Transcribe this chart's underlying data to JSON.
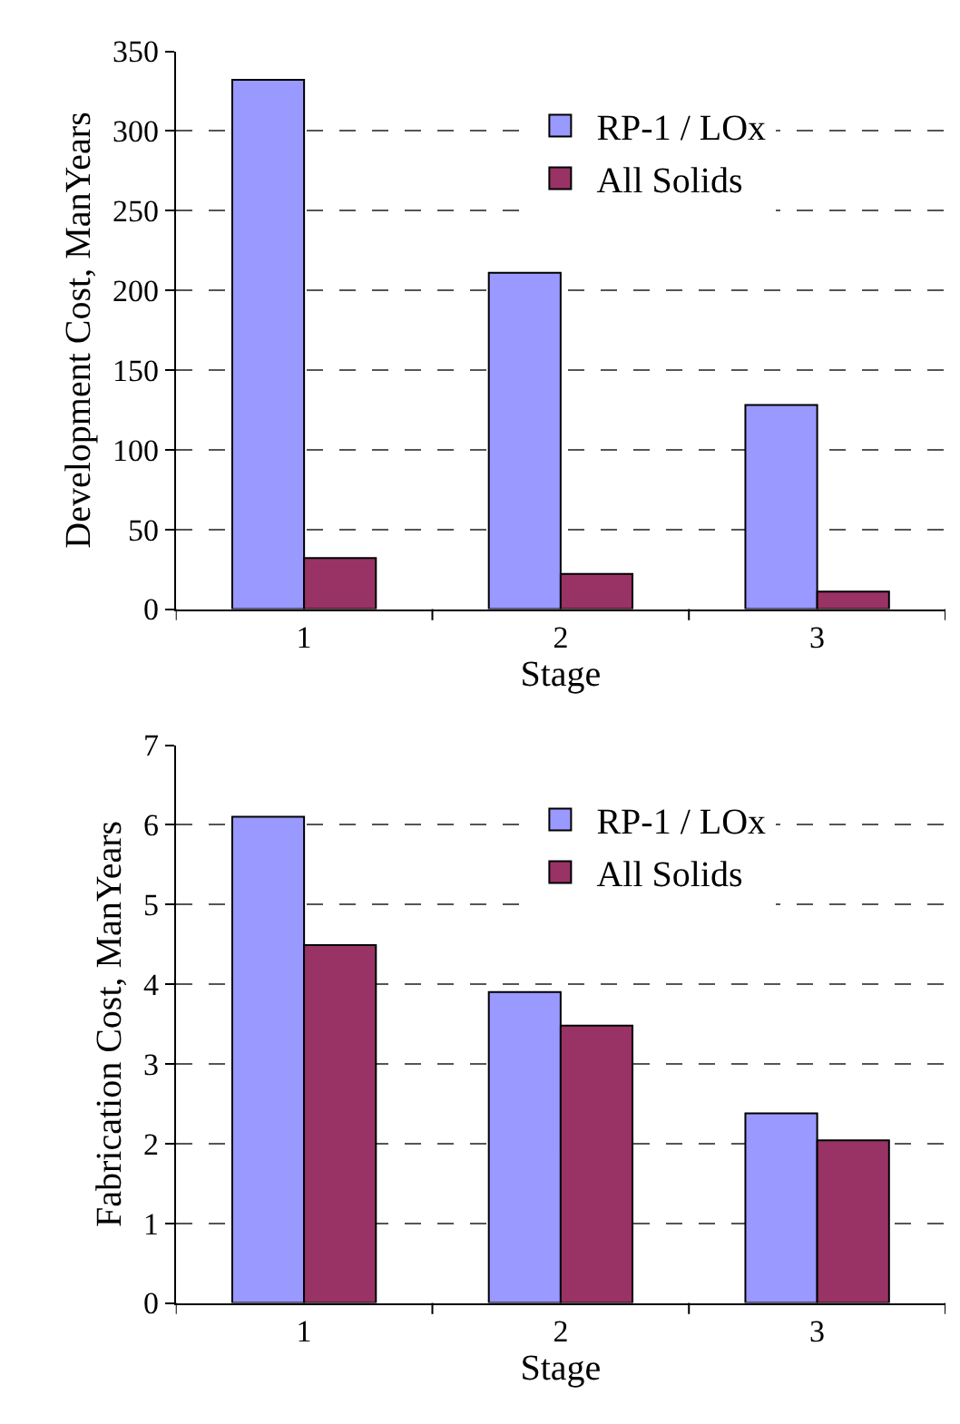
{
  "chart_data": [
    {
      "type": "bar",
      "categories": [
        "1",
        "2",
        "3"
      ],
      "xlabel": "Stage",
      "ylabel": "Development Cost, ManYears",
      "ylim": [
        0,
        350
      ],
      "yticks": [
        0,
        50,
        100,
        150,
        200,
        250,
        300,
        350
      ],
      "grid": "y",
      "legend": "top right",
      "series": [
        {
          "name": "RP-1 / LOx",
          "color": "#9999ff",
          "values": [
            332,
            211,
            128
          ]
        },
        {
          "name": "All Solids",
          "color": "#993366",
          "values": [
            32,
            22,
            11
          ]
        }
      ]
    },
    {
      "type": "bar",
      "categories": [
        "1",
        "2",
        "3"
      ],
      "xlabel": "Stage",
      "ylabel": "Fabrication Cost, ManYears",
      "ylim": [
        0,
        7
      ],
      "yticks": [
        0,
        1,
        2,
        3,
        4,
        5,
        6,
        7
      ],
      "grid": "y",
      "legend": "top right",
      "series": [
        {
          "name": "RP-1 / LOx",
          "color": "#9999ff",
          "values": [
            6.1,
            3.9,
            2.38
          ]
        },
        {
          "name": "All Solids",
          "color": "#993366",
          "values": [
            4.49,
            3.48,
            2.04
          ]
        }
      ]
    }
  ]
}
